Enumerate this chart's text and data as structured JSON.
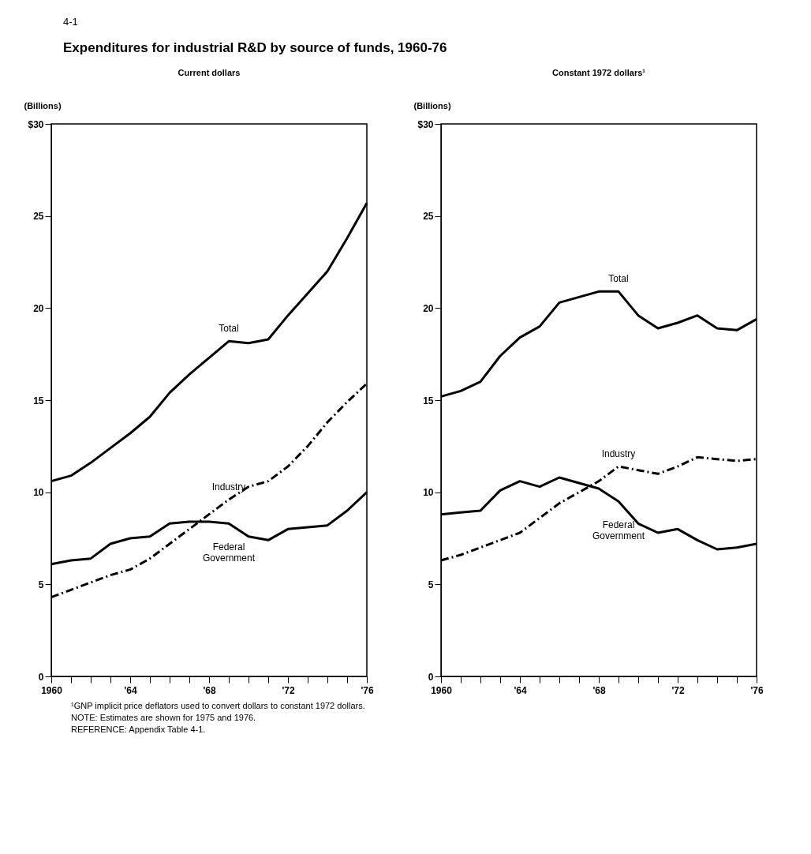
{
  "chart_data": [
    {
      "type": "line",
      "title": "Expenditures for industrial R&D by source of funds, 1960-76",
      "subtitle": "Current dollars",
      "ylabel": "(Billions)",
      "annotations": [
        "4-1",
        "¹GNP implicit price deflators used to convert dollars to constant 1972 dollars.",
        "NOTE:  Estimates are shown for 1975 and 1976.",
        "REFERENCE:  Appendix Table 4-1."
      ],
      "x": [
        1960,
        1961,
        1962,
        1963,
        1964,
        1965,
        1966,
        1967,
        1968,
        1969,
        1970,
        1971,
        1972,
        1973,
        1974,
        1975,
        1976
      ],
      "xlim": [
        1960,
        1976
      ],
      "xticks": [
        1960,
        {
          "value": 1961,
          "label": null
        },
        {
          "value": 1962,
          "label": null
        },
        {
          "value": 1963,
          "label": null
        },
        {
          "value": 1964,
          "label": "'64"
        },
        {
          "value": 1965,
          "label": null
        },
        {
          "value": 1966,
          "label": null
        },
        {
          "value": 1967,
          "label": null
        },
        {
          "value": 1968,
          "label": "'68"
        },
        {
          "value": 1969,
          "label": null
        },
        {
          "value": 1970,
          "label": null
        },
        {
          "value": 1971,
          "label": null
        },
        {
          "value": 1972,
          "label": "'72"
        },
        {
          "value": 1973,
          "label": null
        },
        {
          "value": 1974,
          "label": null
        },
        {
          "value": 1975,
          "label": null
        },
        {
          "value": 1976,
          "label": "'76"
        }
      ],
      "ylim": [
        0,
        30
      ],
      "yticks": [
        0,
        5,
        10,
        15,
        20,
        25,
        {
          "value": 30,
          "label": "$30"
        }
      ],
      "series": [
        {
          "name": "Total",
          "color": "#000000",
          "line_style": "solid",
          "values": [
            10.6,
            10.9,
            11.6,
            12.4,
            13.2,
            14.1,
            15.4,
            16.4,
            17.3,
            18.2,
            18.1,
            18.3,
            19.6,
            20.8,
            22.0,
            23.8,
            25.7
          ]
        },
        {
          "name": "Industry",
          "color": "#000000",
          "line_style": "dashed",
          "values": [
            4.3,
            4.7,
            5.1,
            5.5,
            5.8,
            6.4,
            7.2,
            8.0,
            8.8,
            9.6,
            10.3,
            10.6,
            11.4,
            12.5,
            13.8,
            14.9,
            15.9
          ]
        },
        {
          "name": "Federal Government",
          "color": "#000000",
          "line_style": "solid",
          "values": [
            6.1,
            6.3,
            6.4,
            7.2,
            7.5,
            7.6,
            8.3,
            8.4,
            8.4,
            8.3,
            7.6,
            7.4,
            8.0,
            8.1,
            8.2,
            9.0,
            10.0
          ]
        }
      ]
    },
    {
      "type": "line",
      "subtitle": "Constant 1972 dollars¹",
      "ylabel": "(Billions)",
      "x": [
        1960,
        1961,
        1962,
        1963,
        1964,
        1965,
        1966,
        1967,
        1968,
        1969,
        1970,
        1971,
        1972,
        1973,
        1974,
        1975,
        1976
      ],
      "xlim": [
        1960,
        1976
      ],
      "xticks": [
        1960,
        {
          "value": 1961,
          "label": null
        },
        {
          "value": 1962,
          "label": null
        },
        {
          "value": 1963,
          "label": null
        },
        {
          "value": 1964,
          "label": "'64"
        },
        {
          "value": 1965,
          "label": null
        },
        {
          "value": 1966,
          "label": null
        },
        {
          "value": 1967,
          "label": null
        },
        {
          "value": 1968,
          "label": "'68"
        },
        {
          "value": 1969,
          "label": null
        },
        {
          "value": 1970,
          "label": null
        },
        {
          "value": 1971,
          "label": null
        },
        {
          "value": 1972,
          "label": "'72"
        },
        {
          "value": 1973,
          "label": null
        },
        {
          "value": 1974,
          "label": null
        },
        {
          "value": 1975,
          "label": null
        },
        {
          "value": 1976,
          "label": "'76"
        }
      ],
      "ylim": [
        0,
        30
      ],
      "yticks": [
        0,
        5,
        10,
        15,
        20,
        25,
        {
          "value": 30,
          "label": "$30"
        }
      ],
      "series": [
        {
          "name": "Total",
          "color": "#000000",
          "line_style": "solid",
          "values": [
            15.2,
            15.5,
            16.0,
            17.4,
            18.4,
            19.0,
            20.3,
            20.6,
            20.9,
            20.9,
            19.6,
            18.9,
            19.2,
            19.6,
            18.9,
            18.8,
            19.4
          ]
        },
        {
          "name": "Industry",
          "color": "#000000",
          "line_style": "dashed",
          "values": [
            6.3,
            6.6,
            7.0,
            7.4,
            7.8,
            8.6,
            9.4,
            10.0,
            10.6,
            11.4,
            11.2,
            11.0,
            11.4,
            11.9,
            11.8,
            11.7,
            11.8
          ]
        },
        {
          "name": "Federal Government",
          "color": "#000000",
          "line_style": "solid",
          "values": [
            8.8,
            8.9,
            9.0,
            10.1,
            10.6,
            10.3,
            10.8,
            10.5,
            10.2,
            9.5,
            8.3,
            7.8,
            8.0,
            7.4,
            6.9,
            7.0,
            7.2
          ]
        }
      ]
    }
  ]
}
